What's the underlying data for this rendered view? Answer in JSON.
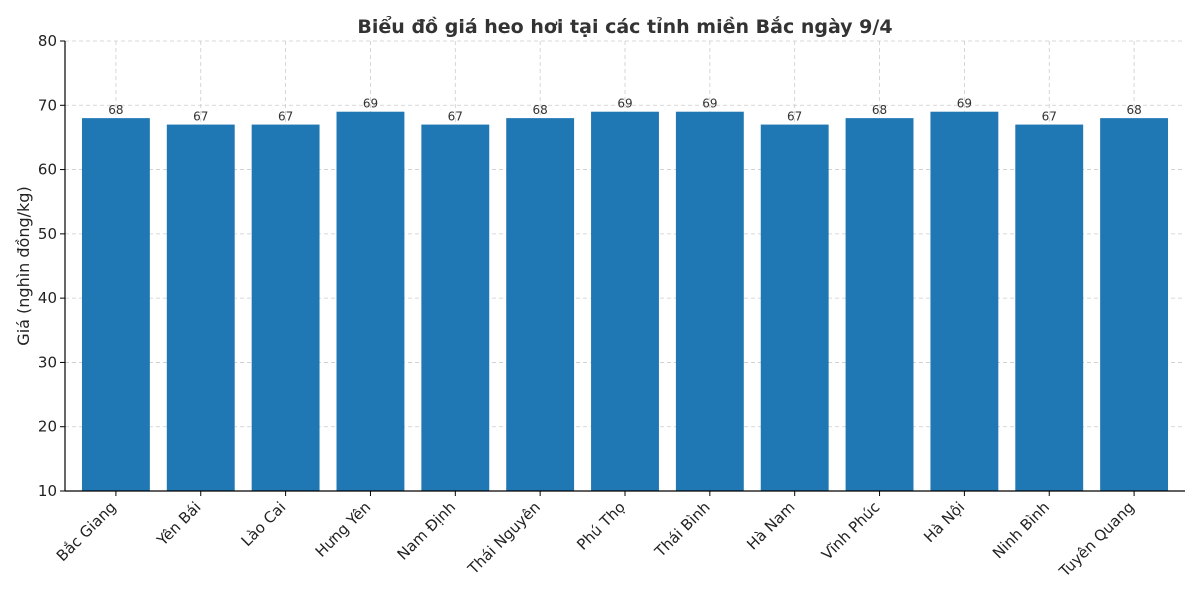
{
  "chart_data": {
    "type": "bar",
    "title": "Biểu đồ giá heo hơi tại các tỉnh miền Bắc ngày 9/4",
    "xlabel": "",
    "ylabel": "Giá (nghìn đồng/kg)",
    "categories": [
      "Bắc Giang",
      "Yên Bái",
      "Lào Cai",
      "Hưng Yên",
      "Nam Định",
      "Thái Nguyên",
      "Phú Thọ",
      "Thái Bình",
      "Hà Nam",
      "Vĩnh Phúc",
      "Hà Nội",
      "Ninh Bình",
      "Tuyên Quang"
    ],
    "values": [
      68,
      67,
      67,
      69,
      67,
      68,
      69,
      69,
      67,
      68,
      69,
      67,
      68
    ],
    "ylim": [
      10,
      80
    ],
    "yticks": [
      10,
      20,
      30,
      40,
      50,
      60,
      70,
      80
    ],
    "grid": true,
    "bar_color": "#1f77b4"
  }
}
